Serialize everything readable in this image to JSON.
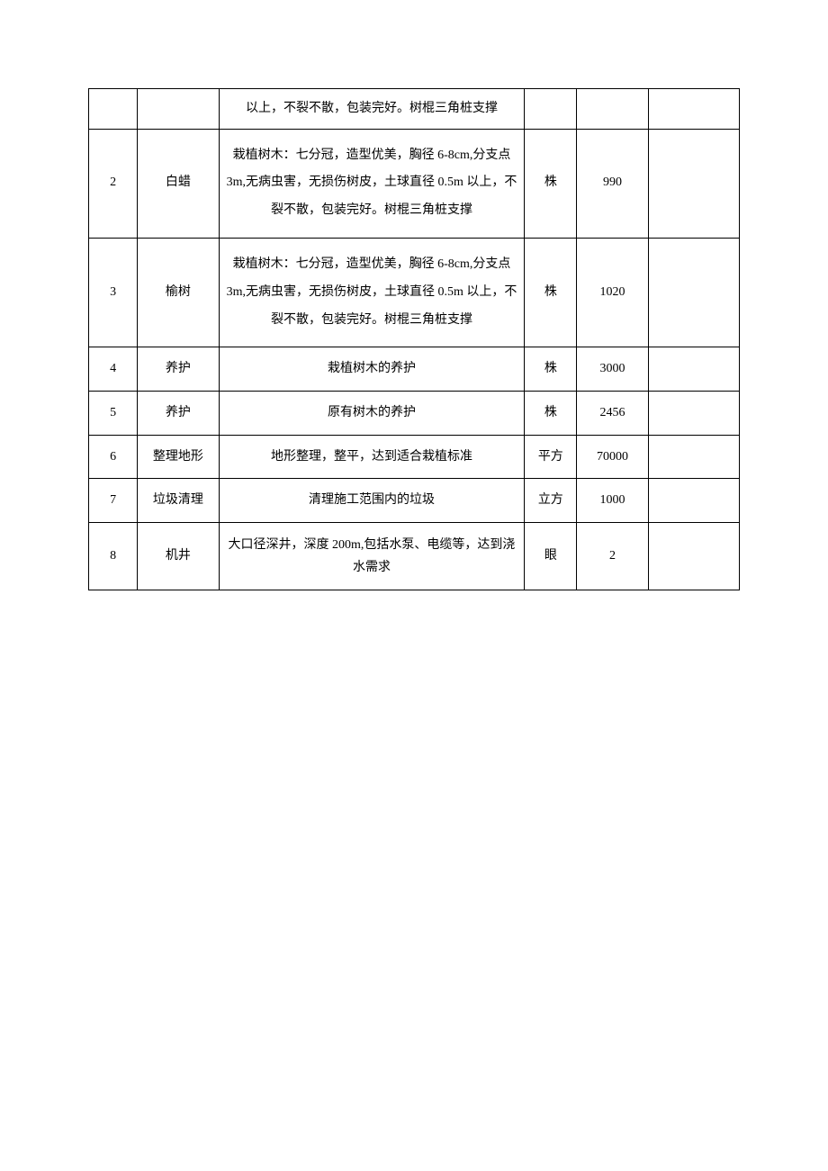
{
  "table": {
    "columns": [
      "col-seq",
      "col-name",
      "col-desc",
      "col-unit",
      "col-qty",
      "col-note"
    ],
    "column_widths_pct": [
      7.5,
      12.5,
      47,
      8,
      11,
      14
    ],
    "border_color": "#000000",
    "background_color": "#ffffff",
    "font_size": 14,
    "text_color": "#000000",
    "rows": [
      {
        "seq": "",
        "name": "",
        "desc": "以上，不裂不散，包装完好。树棍三角桩支撑",
        "unit": "",
        "qty": "",
        "note": "",
        "row_class": "first-row"
      },
      {
        "seq": "2",
        "name": "白蜡",
        "desc": "栽植树木：七分冠，造型优美，胸径 6-8cm,分支点 3m,无病虫害，无损伤树皮，土球直径 0.5m 以上，不裂不散，包装完好。树棍三角桩支撑",
        "unit": "株",
        "qty": "990",
        "note": "",
        "row_class": "tall-row"
      },
      {
        "seq": "3",
        "name": "榆树",
        "desc": "栽植树木：七分冠，造型优美，胸径 6-8cm,分支点 3m,无病虫害，无损伤树皮，土球直径 0.5m 以上，不裂不散，包装完好。树棍三角桩支撑",
        "unit": "株",
        "qty": "1020",
        "note": "",
        "row_class": "tall-row"
      },
      {
        "seq": "4",
        "name": "养护",
        "desc": "栽植树木的养护",
        "unit": "株",
        "qty": "3000",
        "note": "",
        "row_class": "short-row"
      },
      {
        "seq": "5",
        "name": "养护",
        "desc": "原有树木的养护",
        "unit": "株",
        "qty": "2456",
        "note": "",
        "row_class": "short-row"
      },
      {
        "seq": "6",
        "name": "整理地形",
        "desc": "地形整理，整平，达到适合栽植标准",
        "unit": "平方",
        "qty": "70000",
        "note": "",
        "row_class": "short-row"
      },
      {
        "seq": "7",
        "name": "垃圾清理",
        "desc": "清理施工范围内的垃圾",
        "unit": "立方",
        "qty": "1000",
        "note": "",
        "row_class": "short-row"
      },
      {
        "seq": "8",
        "name": "机井",
        "desc": "大口径深井，深度 200m,包括水泵、电缆等，达到浇水需求",
        "unit": "眼",
        "qty": "2",
        "note": "",
        "row_class": "medium-row"
      }
    ]
  }
}
